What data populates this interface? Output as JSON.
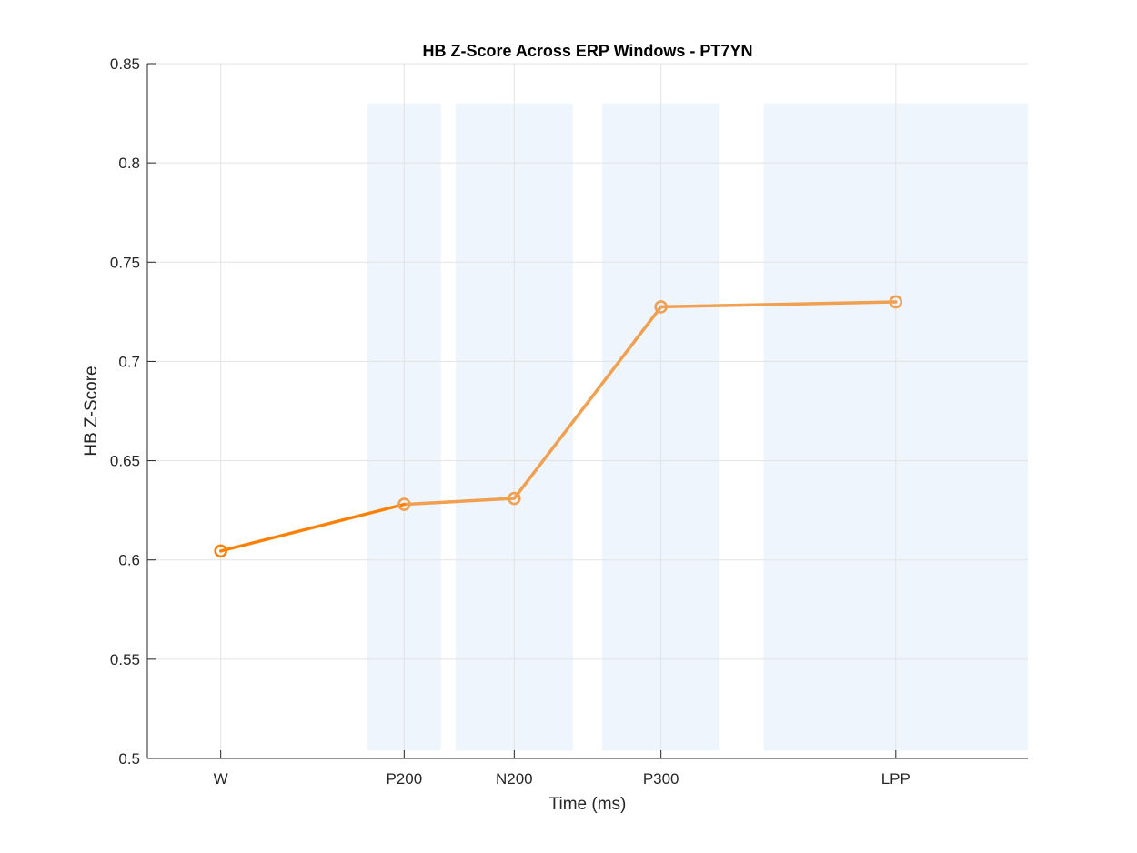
{
  "chart_data": {
    "type": "line",
    "title": "HB Z-Score Across ERP Windows - PT7YN",
    "xlabel": "Time (ms)",
    "ylabel": "HB Z-Score",
    "ylim": [
      0.5,
      0.85
    ],
    "yticks": [
      "0.5",
      "0.55",
      "0.6",
      "0.65",
      "0.7",
      "0.75",
      "0.8",
      "0.85"
    ],
    "grid": true,
    "categories": [
      "W",
      "P200",
      "N200",
      "P300",
      "LPP"
    ],
    "x": [
      0,
      250,
      400,
      600,
      920
    ],
    "xlim": [
      -100,
      1100
    ],
    "values": [
      0.6045,
      0.628,
      0.631,
      0.7275,
      0.73
    ],
    "shaded_windows": [
      [
        200,
        300
      ],
      [
        320,
        480
      ],
      [
        520,
        680
      ],
      [
        740,
        1100
      ]
    ],
    "shade_ylim": [
      0.504,
      0.83
    ],
    "colors": {
      "line": "#f0a050",
      "line_dark": "#ff8000",
      "shade": "#eef5fd",
      "grid": "#e3e3e3",
      "axis": "#262626"
    }
  }
}
